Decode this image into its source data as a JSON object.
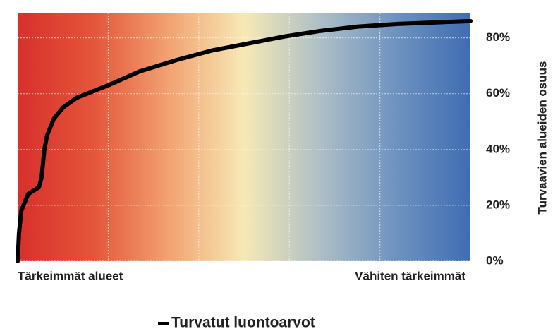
{
  "chart_data": {
    "type": "line",
    "x": [
      0,
      0.3,
      0.8,
      2.3,
      4.7,
      5.3,
      5.9,
      6.5,
      8,
      10,
      13,
      20,
      27,
      35,
      43,
      51,
      59,
      67,
      75,
      84,
      92,
      100
    ],
    "series": [
      {
        "name": "Turvatut luontoarvot",
        "color": "#000000",
        "values": [
          0,
          10,
          18,
          24,
          26.5,
          30,
          40,
          45,
          51,
          55,
          58.5,
          63,
          68,
          72,
          75.5,
          78,
          80.5,
          82.5,
          84,
          85,
          85.5,
          86
        ]
      }
    ],
    "xlim": [
      0,
      100
    ],
    "xticks": [
      20,
      40,
      60,
      80
    ],
    "ylim": [
      0,
      89
    ],
    "yticks": [
      {
        "value": 0,
        "label": "0%"
      },
      {
        "value": 20,
        "label": "20%"
      },
      {
        "value": 40,
        "label": "40%"
      },
      {
        "value": 60,
        "label": "60%"
      },
      {
        "value": 80,
        "label": "80%"
      }
    ],
    "y_axis_side": "right",
    "ylabel": "Turvaavien alueiden osuus",
    "annotations": [
      "Tärkeimmät alueet",
      "Vähiten tärkeimmät"
    ],
    "background_gradient": [
      "#d7302b",
      "#e4553a",
      "#f2a270",
      "#f6e9b6",
      "#aebfc6",
      "#6f93c0",
      "#3f6db3"
    ],
    "grid": true
  }
}
